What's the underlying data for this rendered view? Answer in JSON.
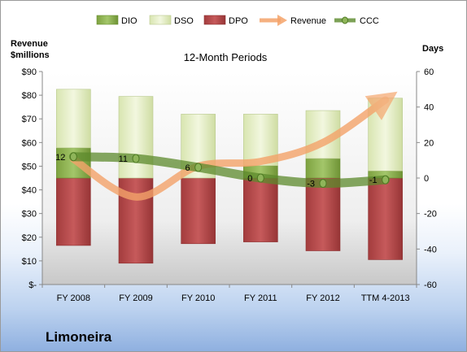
{
  "company": "Limoneira",
  "chart_data": {
    "type": "bar",
    "title": "12-Month Periods",
    "y_left_label": [
      "Revenue",
      "$millions"
    ],
    "y_right_label": "Days",
    "categories": [
      "FY 2008",
      "FY 2009",
      "FY 2010",
      "FY 2011",
      "FY 2012",
      "TTM 4-2013"
    ],
    "y_left_ticks": [
      "$-",
      "$10",
      "$20",
      "$30",
      "$40",
      "$50",
      "$60",
      "$70",
      "$80",
      "$90"
    ],
    "y_left_range": [
      0,
      90
    ],
    "y_right_ticks": [
      "-60",
      "-40",
      "-20",
      "0",
      "20",
      "40",
      "60"
    ],
    "y_right_range": [
      -60,
      60
    ],
    "legend_position": "top",
    "legend": [
      "DIO",
      "DSO",
      "DPO",
      "Revenue",
      "CCC"
    ],
    "series": [
      {
        "name": "DIO",
        "axis": "right",
        "color": "#8db04a",
        "values": [
          17,
          0,
          0,
          7,
          11,
          4
        ]
      },
      {
        "name": "DSO",
        "axis": "right",
        "color": "#e3edc4",
        "values": [
          33,
          46,
          36,
          29,
          27,
          41
        ]
      },
      {
        "name": "DPO",
        "axis": "right",
        "color": "#b5494a",
        "values": [
          -38,
          -48,
          -37,
          -36,
          -41,
          -46
        ]
      },
      {
        "name": "Revenue",
        "axis": "left",
        "color": "#f4a36a",
        "values": [
          53,
          37,
          50,
          52,
          60,
          78
        ]
      },
      {
        "name": "CCC",
        "axis": "right",
        "color": "#5c8a2c",
        "values": [
          12,
          11,
          6,
          0,
          -3,
          -1
        ],
        "labels": [
          "12",
          "11",
          "6",
          "0",
          "-3",
          "-1"
        ]
      }
    ]
  }
}
